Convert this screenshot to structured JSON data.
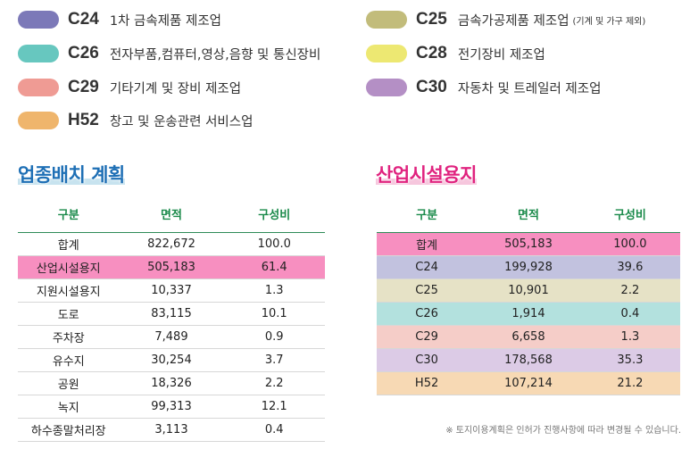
{
  "colors": {
    "C24": "#7c79b8",
    "C25": "#c2bc7b",
    "C26": "#67c7bf",
    "C28": "#ede872",
    "C29": "#ef9b94",
    "C30": "#b48fc5",
    "H52": "#efb56c",
    "highlight": "#f78fc0"
  },
  "legend": [
    {
      "code": "C24",
      "name": "1차 금속제품 제조업",
      "note": ""
    },
    {
      "code": "C25",
      "name": "금속가공제품 제조업",
      "note": "(기계 및 가구 제외)"
    },
    {
      "code": "C26",
      "name": "전자부품,컴퓨터,영상,음향 및 통신장비",
      "note": ""
    },
    {
      "code": "C28",
      "name": "전기장비 제조업",
      "note": ""
    },
    {
      "code": "C29",
      "name": "기타기계 및 장비 제조업",
      "note": ""
    },
    {
      "code": "C30",
      "name": "자동차 및 트레일러 제조업",
      "note": ""
    },
    {
      "code": "H52",
      "name": "창고 및 운송관련 서비스업",
      "note": ""
    }
  ],
  "plan": {
    "title": "업종배치 계획",
    "headers": [
      "구분",
      "면적",
      "구성비"
    ],
    "rows": [
      [
        "합계",
        "822,672",
        "100.0"
      ],
      [
        "산업시설용지",
        "505,183",
        "61.4"
      ],
      [
        "지원시설용지",
        "10,337",
        "1.3"
      ],
      [
        "도로",
        "83,115",
        "10.1"
      ],
      [
        "주차장",
        "7,489",
        "0.9"
      ],
      [
        "유수지",
        "30,254",
        "3.7"
      ],
      [
        "공원",
        "18,326",
        "2.2"
      ],
      [
        "녹지",
        "99,313",
        "12.1"
      ],
      [
        "하수종말처리장",
        "3,113",
        "0.4"
      ]
    ]
  },
  "industrial": {
    "title": "산업시설용지",
    "headers": [
      "구분",
      "면적",
      "구성비"
    ],
    "rows": [
      [
        "합계",
        "505,183",
        "100.0"
      ],
      [
        "C24",
        "199,928",
        "39.6"
      ],
      [
        "C25",
        "10,901",
        "2.2"
      ],
      [
        "C26",
        "1,914",
        "0.4"
      ],
      [
        "C29",
        "6,658",
        "1.3"
      ],
      [
        "C30",
        "178,568",
        "35.3"
      ],
      [
        "H52",
        "107,214",
        "21.2"
      ]
    ]
  },
  "footnote": "※ 토지이용계획은 인허가 진행사항에 따라 변경될 수 있습니다."
}
